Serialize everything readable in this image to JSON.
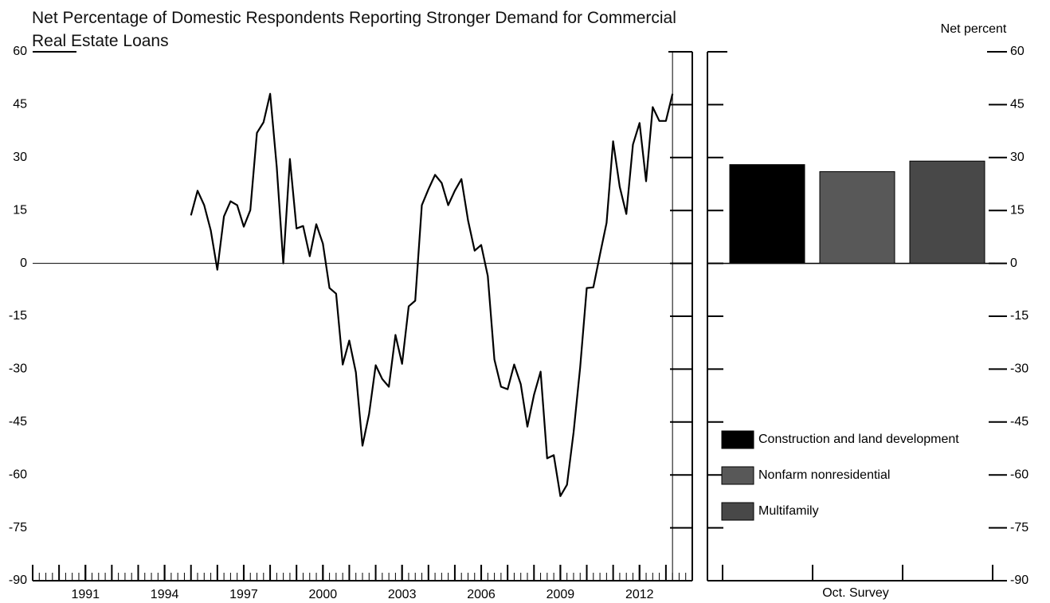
{
  "chart_data": [
    {
      "type": "line",
      "title": "Net Percentage of Domestic Respondents Reporting Stronger Demand for Commercial Real Estate Loans",
      "color": "#000000",
      "x": [
        1995,
        1995.25,
        1995.5,
        1995.75,
        1996,
        1996.25,
        1996.5,
        1996.75,
        1997,
        1997.25,
        1997.5,
        1997.75,
        1998,
        1998.25,
        1998.5,
        1998.75,
        1999,
        1999.25,
        1999.5,
        1999.75,
        2000,
        2000.25,
        2000.5,
        2000.75,
        2001,
        2001.25,
        2001.5,
        2001.75,
        2002,
        2002.25,
        2002.5,
        2002.75,
        2003,
        2003.25,
        2003.5,
        2003.75,
        2004,
        2004.25,
        2004.5,
        2004.75,
        2005,
        2005.25,
        2005.5,
        2005.75,
        2006,
        2006.25,
        2006.5,
        2006.75,
        2007,
        2007.25,
        2007.5,
        2007.75,
        2008,
        2008.25,
        2008.5,
        2008.75,
        2009,
        2009.25,
        2009.5,
        2009.75,
        2010,
        2010.25,
        2010.5,
        2010.75,
        2011,
        2011.25,
        2011.5,
        2011.75,
        2012,
        2012.25,
        2012.5,
        2012.75,
        2013,
        2013.25
      ],
      "values": [
        13.6,
        20.6,
        16.5,
        9.3,
        -1.8,
        13.3,
        17.6,
        16.5,
        10.4,
        15.1,
        37,
        40,
        48.1,
        27.3,
        0,
        29.6,
        9.9,
        10.6,
        2,
        11.1,
        5.6,
        -7,
        -8.6,
        -28.7,
        -21.9,
        -30.9,
        -51.7,
        -42.7,
        -28.9,
        -32.8,
        -35,
        -20.3,
        -28.5,
        -12.2,
        -10.6,
        16.5,
        21,
        25.1,
        22.8,
        16.5,
        20.6,
        23.9,
        12.2,
        3.6,
        5.2,
        -3.6,
        -27.3,
        -35,
        -35.7,
        -28.7,
        -34.3,
        -46.3,
        -37.3,
        -30.7,
        -55.3,
        -54.4,
        -66,
        -62.8,
        -47.9,
        -29.6,
        -7,
        -6.8,
        2.5,
        11.5,
        34.6,
        21.7,
        14,
        33.7,
        39.8,
        23.3,
        44.3,
        40.4,
        40.4,
        48.1
      ],
      "xlim": [
        1989,
        2014
      ],
      "xticks": [
        1991,
        1994,
        1997,
        2000,
        2003,
        2006,
        2009,
        2012
      ],
      "ylim": [
        -90,
        60
      ],
      "yticks": [
        -90,
        -75,
        -60,
        -45,
        -30,
        -15,
        0,
        15,
        30,
        45,
        60
      ]
    },
    {
      "type": "bar",
      "ylabel": "Net percent",
      "xlabel": "Oct. Survey",
      "categories": [
        "Construction and land development",
        "Nonfarm nonresidential",
        "Multifamily"
      ],
      "values": [
        28,
        26,
        29
      ],
      "colors": [
        "#000000",
        "#585858",
        "#484848"
      ],
      "ylim": [
        -90,
        60
      ],
      "yticks": [
        -90,
        -75,
        -60,
        -45,
        -30,
        -15,
        0,
        15,
        30,
        45,
        60
      ],
      "legend": "lower left"
    }
  ]
}
